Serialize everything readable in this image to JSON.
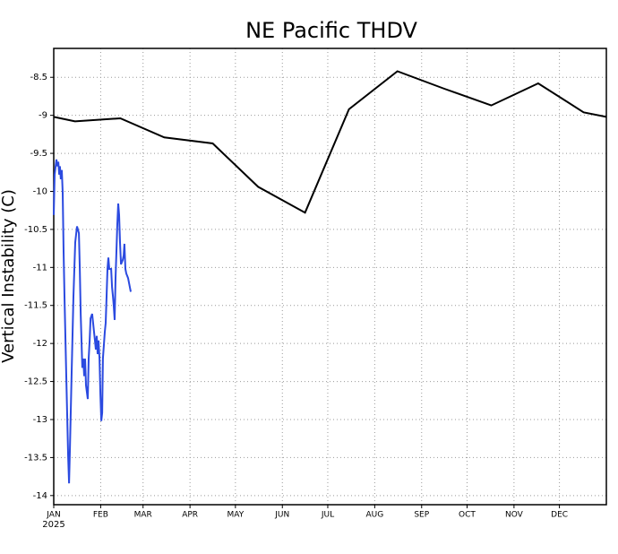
{
  "chart_data": {
    "type": "line",
    "title": "NE Pacific THDV",
    "y_label": "Vertical Instability (C)",
    "x_sublabel": "2025",
    "xlim": [
      0,
      365
    ],
    "ylim": [
      -14.12,
      -8.12
    ],
    "grid": true,
    "xticks": [
      {
        "value": 0,
        "label": "JAN"
      },
      {
        "value": 31,
        "label": "FEB"
      },
      {
        "value": 59,
        "label": "MAR"
      },
      {
        "value": 90,
        "label": "APR"
      },
      {
        "value": 120,
        "label": "MAY"
      },
      {
        "value": 151,
        "label": "JUN"
      },
      {
        "value": 181,
        "label": "JUL"
      },
      {
        "value": 212,
        "label": "AUG"
      },
      {
        "value": 243,
        "label": "SEP"
      },
      {
        "value": 273,
        "label": "OCT"
      },
      {
        "value": 304,
        "label": "NOV"
      },
      {
        "value": 334,
        "label": "DEC"
      }
    ],
    "yticks": [
      -8.5,
      -9,
      -9.5,
      -10,
      -10.5,
      -11,
      -11.5,
      -12,
      -12.5,
      -13,
      -13.5,
      -14
    ],
    "series": [
      {
        "color": "#000000",
        "x": [
          0,
          14,
          44,
          73,
          105,
          135,
          166,
          195,
          227,
          258,
          289,
          320,
          350,
          365
        ],
        "values": [
          -9.02,
          -9.08,
          -9.04,
          -9.29,
          -9.37,
          -9.94,
          -10.28,
          -8.92,
          -8.42,
          -8.65,
          -8.87,
          -8.58,
          -8.96,
          -9.02
        ]
      },
      {
        "color": "#2b4ae0",
        "x": [
          0,
          0.6,
          1.8,
          2.4,
          3.0,
          3.6,
          4.1,
          4.7,
          5.3,
          5.9,
          6.5,
          7.1,
          8.3,
          9.5,
          10.1,
          10.7,
          11.8,
          13.0,
          14.2,
          15.4,
          16.6,
          17.2,
          17.8,
          18.9,
          19.5,
          20.1,
          20.7,
          21.3,
          22.5,
          23.1,
          23.7,
          24.3,
          25.4,
          26.6,
          27.2,
          27.8,
          28.4,
          29.0,
          29.6,
          30.2,
          30.8,
          31.4,
          32.0,
          32.5,
          33.7,
          34.3,
          34.9,
          35.5,
          36.1,
          36.7,
          37.9,
          38.5,
          39.1,
          39.6,
          40.2,
          40.8,
          41.4,
          42.0,
          42.6,
          43.2,
          43.8,
          44.4,
          45.6,
          46.2,
          46.7,
          47.3,
          47.9,
          49.1,
          50.3,
          50.9
        ],
        "values": [
          -10.31,
          -9.78,
          -9.58,
          -9.67,
          -9.61,
          -9.78,
          -9.67,
          -9.84,
          -9.72,
          -10.02,
          -10.79,
          -11.38,
          -12.43,
          -13.49,
          -13.84,
          -13.37,
          -12.43,
          -11.38,
          -10.67,
          -10.46,
          -10.55,
          -11.02,
          -11.61,
          -12.32,
          -12.2,
          -12.43,
          -12.2,
          -12.55,
          -12.73,
          -12.2,
          -11.96,
          -11.67,
          -11.61,
          -11.85,
          -11.96,
          -12.08,
          -11.9,
          -12.14,
          -11.96,
          -12.2,
          -12.67,
          -13.02,
          -12.91,
          -12.2,
          -11.85,
          -11.73,
          -11.38,
          -11.02,
          -10.87,
          -11.02,
          -11.02,
          -11.26,
          -11.38,
          -11.49,
          -11.69,
          -11.14,
          -10.79,
          -10.43,
          -10.16,
          -10.31,
          -10.67,
          -10.96,
          -10.9,
          -10.84,
          -10.69,
          -11.02,
          -11.08,
          -11.14,
          -11.26,
          -11.32
        ]
      }
    ]
  }
}
